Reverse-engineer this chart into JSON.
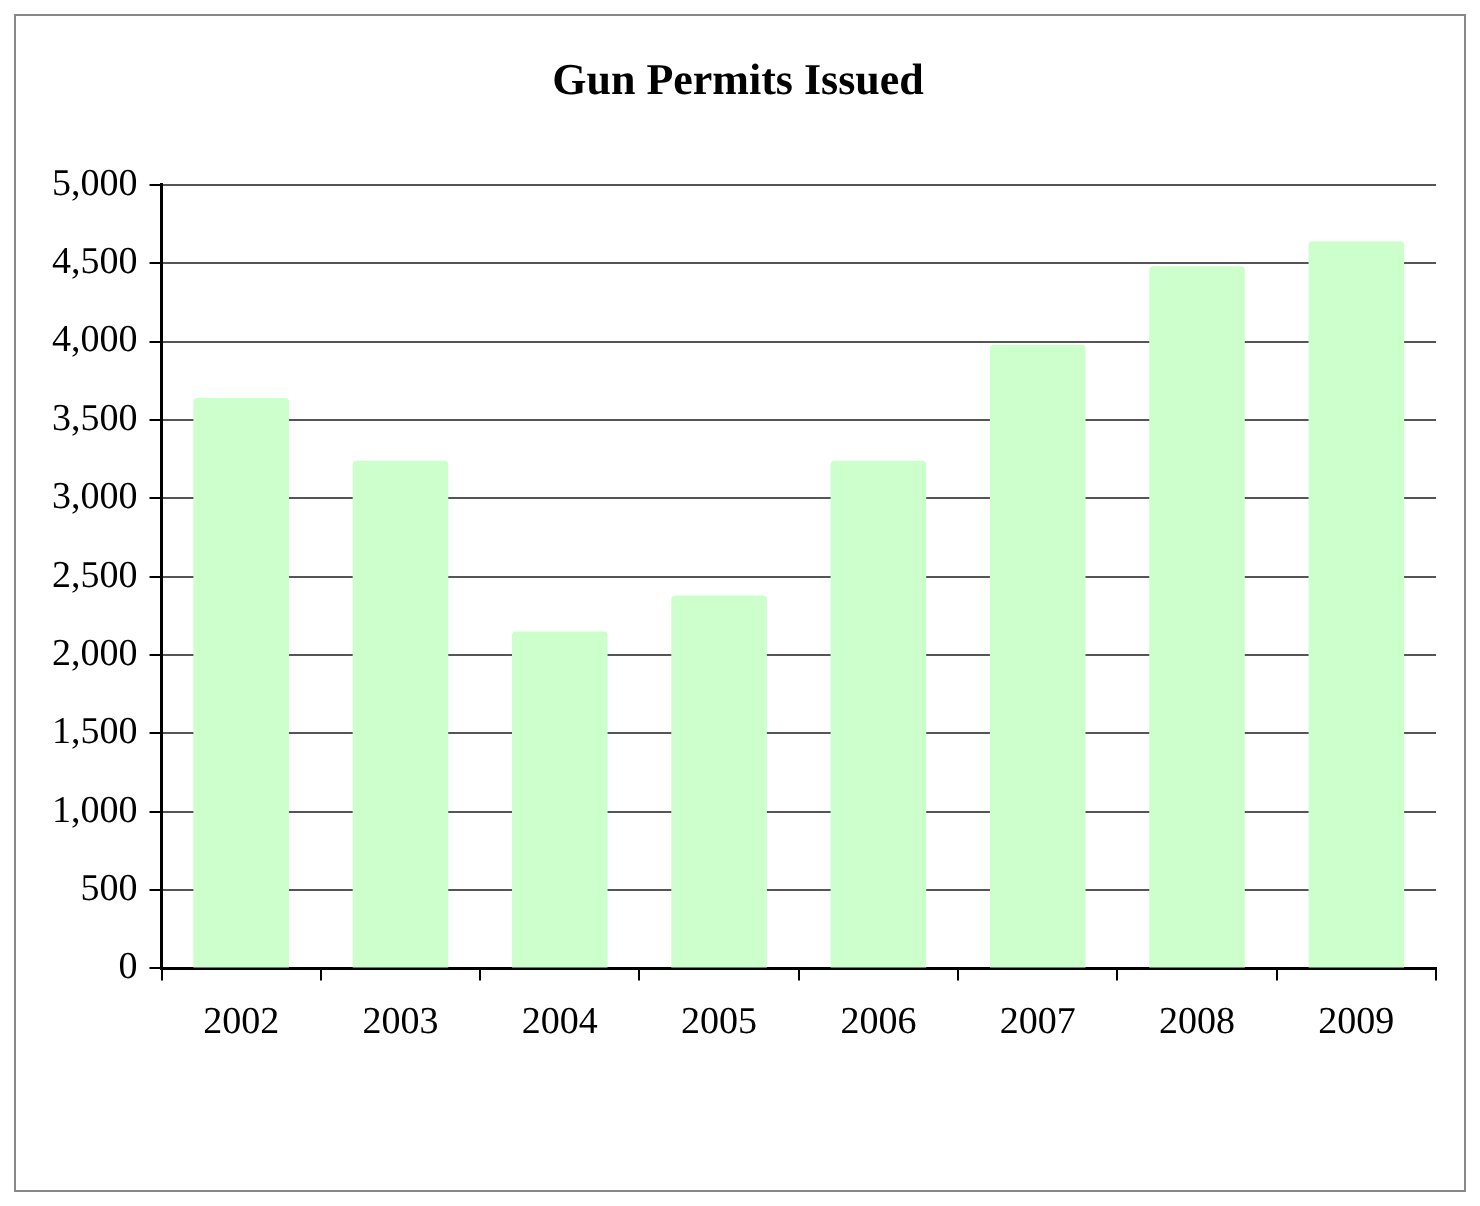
{
  "chart_data": {
    "type": "bar",
    "title": "Gun Permits Issued",
    "categories": [
      "2002",
      "2003",
      "2004",
      "2005",
      "2006",
      "2007",
      "2008",
      "2009"
    ],
    "values": [
      3640,
      3240,
      2150,
      2380,
      3240,
      3980,
      4480,
      4640
    ],
    "color": "#ccffcc",
    "ylim": [
      0,
      5000
    ],
    "yticks": [
      {
        "value": 0,
        "label": "0"
      },
      {
        "value": 500,
        "label": "500"
      },
      {
        "value": 1000,
        "label": "1,000"
      },
      {
        "value": 1500,
        "label": "1,500"
      },
      {
        "value": 2000,
        "label": "2,000"
      },
      {
        "value": 2500,
        "label": "2,500"
      },
      {
        "value": 3000,
        "label": "3,000"
      },
      {
        "value": 3500,
        "label": "3,500"
      },
      {
        "value": 4000,
        "label": "4,000"
      },
      {
        "value": 4500,
        "label": "4,500"
      },
      {
        "value": 5000,
        "label": "5,000"
      }
    ],
    "grid": "y",
    "legend": false
  }
}
